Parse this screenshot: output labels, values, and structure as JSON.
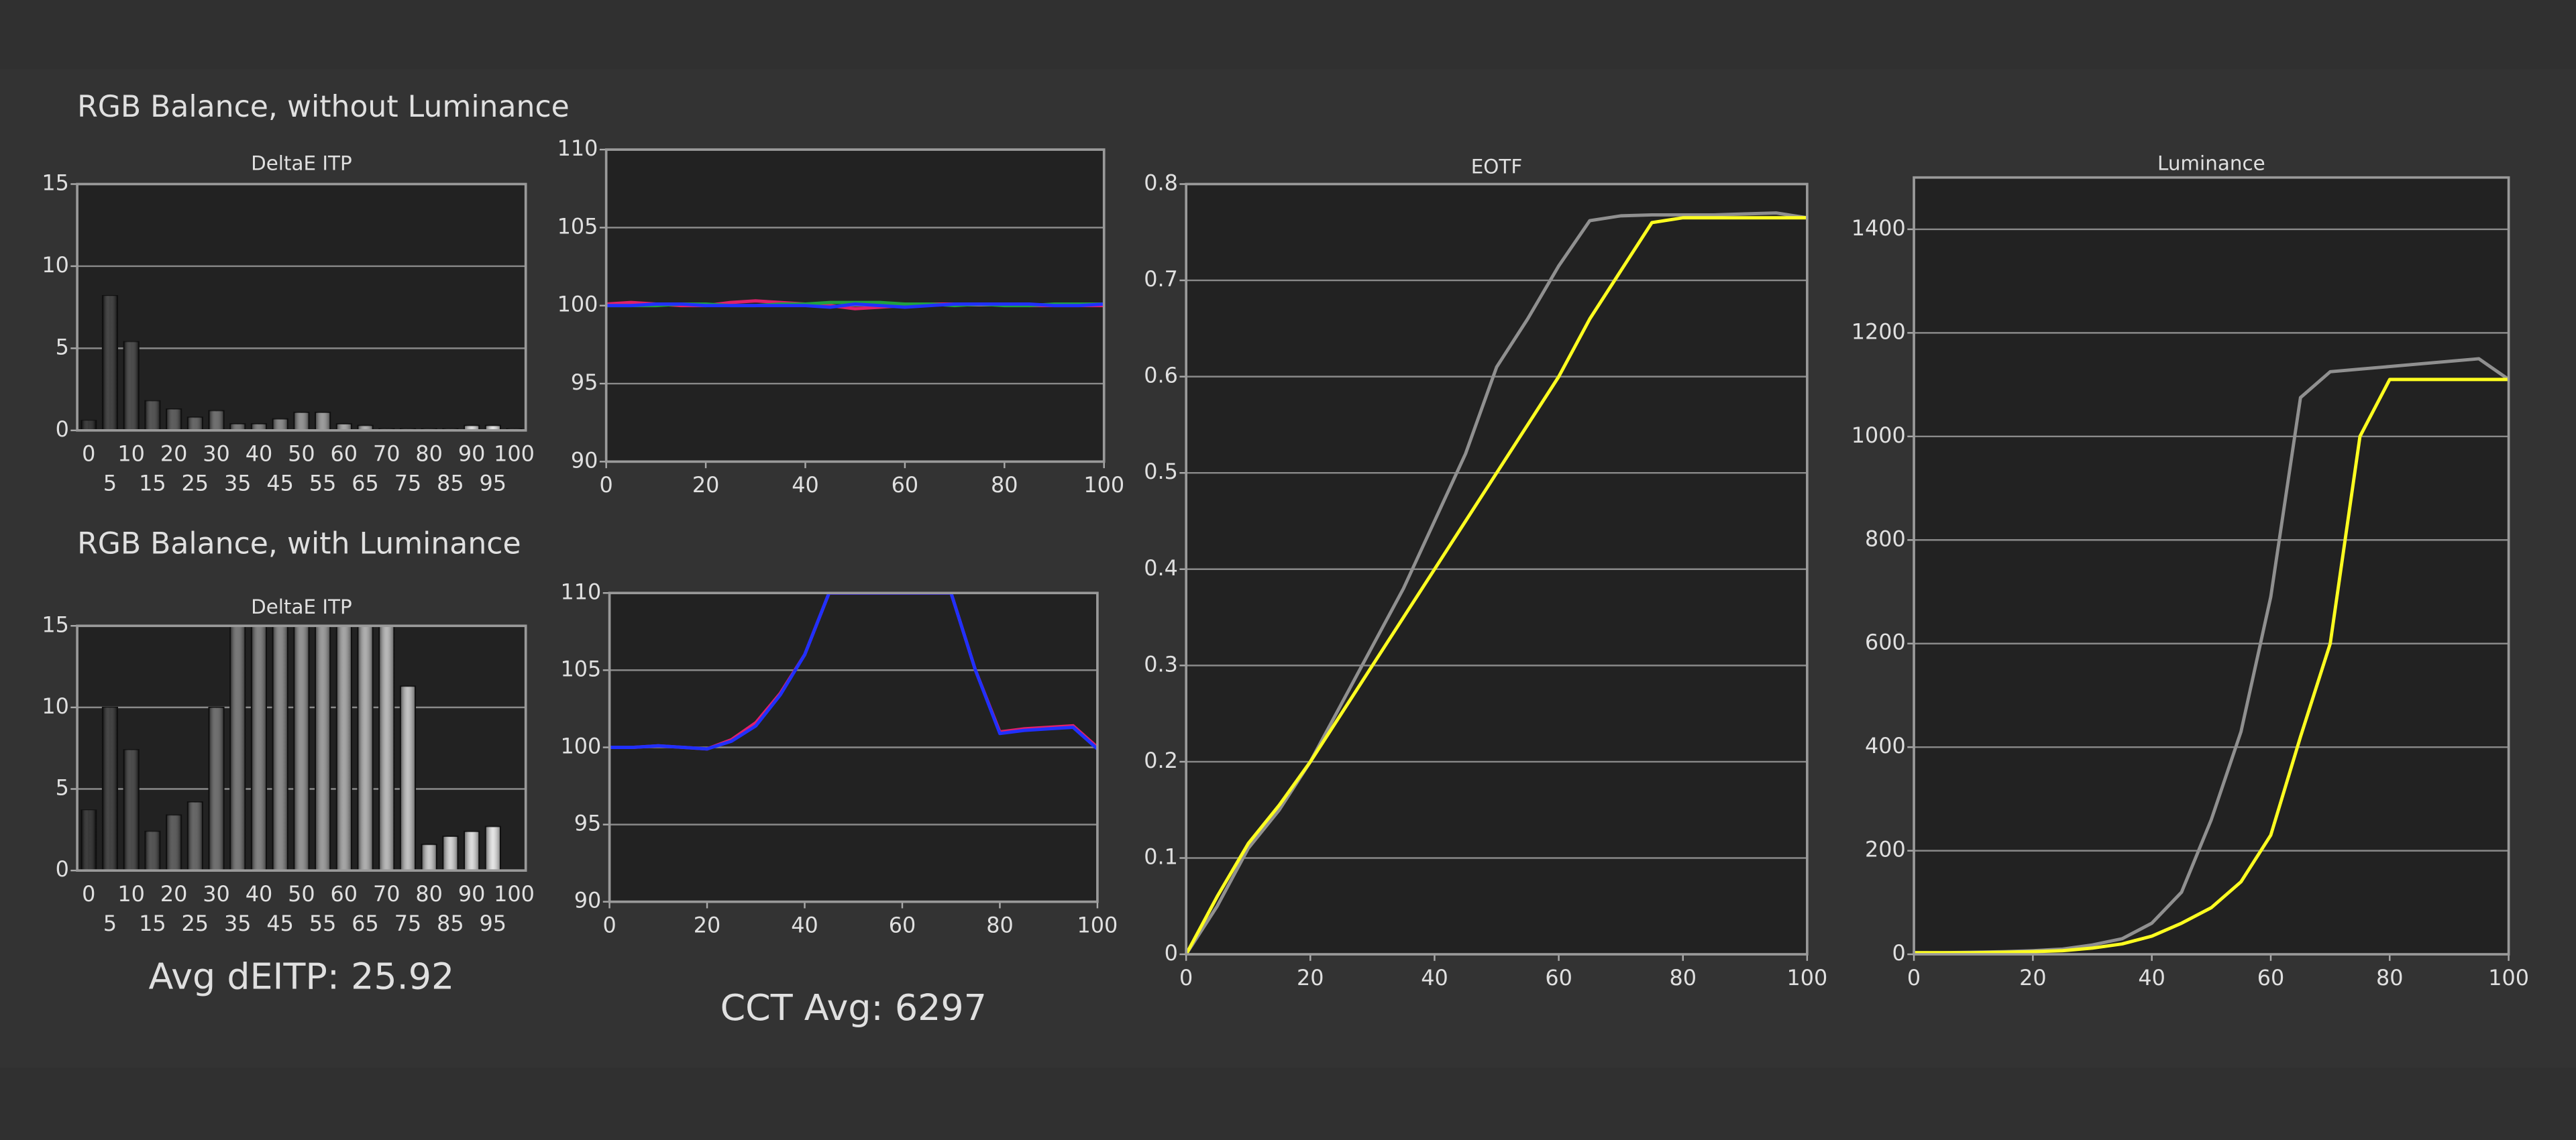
{
  "headings": [
    "RGB Balance, without Luminance",
    "RGB Balance, with Luminance"
  ],
  "chart_data": [
    {
      "type": "bar",
      "title": "DeltaE ITP",
      "categories": [
        0,
        5,
        10,
        15,
        20,
        25,
        30,
        35,
        40,
        45,
        50,
        55,
        60,
        65,
        70,
        75,
        80,
        85,
        90,
        95,
        100
      ],
      "values": [
        0.6,
        8.2,
        5.4,
        1.8,
        1.3,
        0.8,
        1.2,
        0.4,
        0.4,
        0.7,
        1.1,
        1.1,
        0.4,
        0.3,
        0.1,
        0.1,
        0.1,
        0.1,
        0.3,
        0.3,
        0.1
      ],
      "ylim": [
        0,
        15
      ],
      "yticks": [
        0,
        5,
        10,
        15
      ],
      "grid": true
    },
    {
      "type": "line",
      "x": [
        0,
        5,
        10,
        15,
        20,
        25,
        30,
        35,
        40,
        45,
        50,
        55,
        60,
        65,
        70,
        75,
        80,
        85,
        90,
        95,
        100
      ],
      "series": [
        {
          "name": "Red",
          "color": "#e0206a",
          "values": [
            100.1,
            100.2,
            100.1,
            100,
            100,
            100.2,
            100.3,
            100.2,
            100.1,
            100,
            99.8,
            99.9,
            100,
            100.1,
            100.1,
            100.1,
            100.1,
            100,
            100,
            100,
            100
          ]
        },
        {
          "name": "Green",
          "color": "#20a040",
          "values": [
            100,
            100,
            100,
            100.1,
            100.1,
            100,
            100,
            100.1,
            100.1,
            100.2,
            100.2,
            100.2,
            100.1,
            100.1,
            100,
            100.1,
            100,
            100,
            100.1,
            100.1,
            100.1
          ]
        },
        {
          "name": "Blue",
          "color": "#2030ff",
          "values": [
            100,
            100,
            100.1,
            100.1,
            100,
            100,
            100,
            100,
            100,
            99.9,
            100.1,
            100,
            99.9,
            100,
            100.1,
            100.1,
            100.1,
            100.1,
            100,
            100,
            100.1
          ]
        }
      ],
      "xlim": [
        0,
        100
      ],
      "xticks": [
        0,
        20,
        40,
        60,
        80,
        100
      ],
      "ylim": [
        90,
        110
      ],
      "yticks": [
        90,
        95,
        100,
        105,
        110
      ],
      "grid": true
    },
    {
      "type": "line",
      "title": "EOTF",
      "x": [
        0,
        5,
        10,
        15,
        20,
        25,
        30,
        35,
        40,
        45,
        50,
        55,
        60,
        65,
        70,
        75,
        80,
        85,
        90,
        95,
        100
      ],
      "series": [
        {
          "color": "#909090",
          "values": [
            0,
            0.05,
            0.11,
            0.15,
            0.2,
            0.26,
            0.32,
            0.38,
            0.45,
            0.52,
            0.61,
            0.66,
            0.715,
            0.762,
            0.767,
            0.768,
            0.768,
            0.768,
            0.769,
            0.77,
            0.765
          ]
        },
        {
          "color": "#ffff20",
          "values": [
            0,
            0.06,
            0.115,
            0.155,
            0.2,
            0.25,
            0.3,
            0.35,
            0.4,
            0.45,
            0.5,
            0.55,
            0.6,
            0.66,
            0.71,
            0.76,
            0.765,
            0.765,
            0.765,
            0.765,
            0.765
          ]
        }
      ],
      "xlim": [
        0,
        100
      ],
      "xticks": [
        0,
        20,
        40,
        60,
        80,
        100
      ],
      "ylim": [
        0,
        0.8
      ],
      "yticks": [
        0,
        0.1,
        0.2,
        0.3,
        0.4,
        0.5,
        0.6,
        0.7,
        0.8
      ],
      "grid": true
    },
    {
      "type": "line",
      "title": "Luminance",
      "x": [
        0,
        5,
        10,
        15,
        20,
        25,
        30,
        35,
        40,
        45,
        50,
        55,
        60,
        65,
        70,
        75,
        80,
        85,
        90,
        95,
        100
      ],
      "series": [
        {
          "color": "#909090",
          "values": [
            3,
            3,
            4,
            5,
            7,
            10,
            18,
            30,
            60,
            120,
            260,
            430,
            690,
            1075,
            1125,
            1130,
            1135,
            1140,
            1145,
            1150,
            1110
          ]
        },
        {
          "color": "#ffff20",
          "values": [
            3,
            3,
            3,
            4,
            5,
            7,
            12,
            20,
            35,
            60,
            90,
            140,
            230,
            420,
            600,
            1000,
            1110,
            1110,
            1110,
            1110,
            1110
          ]
        }
      ],
      "xlim": [
        0,
        100
      ],
      "xticks": [
        0,
        20,
        40,
        60,
        80,
        100
      ],
      "ylim": [
        0,
        1500
      ],
      "yticks": [
        0,
        200,
        400,
        600,
        800,
        1000,
        1200,
        1400
      ],
      "grid": true
    },
    {
      "type": "bar",
      "title": "DeltaE ITP",
      "annotation": "Avg dEITP: 25.92",
      "categories": [
        0,
        5,
        10,
        15,
        20,
        25,
        30,
        35,
        40,
        45,
        50,
        55,
        60,
        65,
        70,
        75,
        80,
        85,
        90,
        95,
        100
      ],
      "values": [
        3.7,
        10,
        7.4,
        2.4,
        3.4,
        4.2,
        10,
        15,
        15,
        15,
        15,
        15,
        15,
        15,
        15,
        11.3,
        1.6,
        2.1,
        2.4,
        2.7,
        0
      ],
      "ylim": [
        0,
        15
      ],
      "yticks": [
        0,
        5,
        10,
        15
      ],
      "grid": true
    },
    {
      "type": "line",
      "annotation": "CCT Avg: 6297",
      "x": [
        0,
        5,
        10,
        15,
        20,
        25,
        30,
        35,
        40,
        45,
        50,
        55,
        60,
        65,
        70,
        75,
        80,
        85,
        90,
        95,
        100
      ],
      "series": [
        {
          "name": "Red",
          "color": "#e0206a",
          "values": [
            100,
            100,
            100.1,
            100,
            99.9,
            100.5,
            101.6,
            103.5,
            106,
            110,
            110,
            110,
            110,
            110,
            110,
            105,
            101,
            101.2,
            101.3,
            101.4,
            100
          ]
        },
        {
          "name": "Blue",
          "color": "#2030ff",
          "values": [
            100,
            100,
            100.1,
            100,
            99.9,
            100.4,
            101.4,
            103.4,
            106,
            110,
            110,
            110,
            110,
            110,
            110,
            105,
            100.9,
            101.1,
            101.2,
            101.3,
            99.9
          ]
        }
      ],
      "xlim": [
        0,
        100
      ],
      "xticks": [
        0,
        20,
        40,
        60,
        80,
        100
      ],
      "ylim": [
        90,
        110
      ],
      "yticks": [
        90,
        95,
        100,
        105,
        110
      ],
      "grid": true
    }
  ]
}
